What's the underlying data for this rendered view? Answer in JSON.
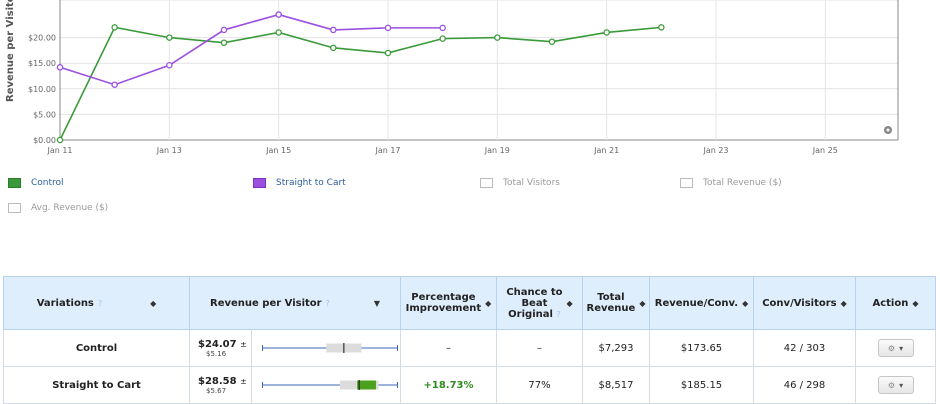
{
  "chart_data": {
    "type": "line",
    "ylabel": "Revenue per Visito",
    "yticks": [
      "$0.00",
      "$5.00",
      "$10.00",
      "$15.00",
      "$20.00"
    ],
    "ylim": [
      0,
      25
    ],
    "xticks": [
      "Jan 11",
      "Jan 13",
      "Jan 15",
      "Jan 17",
      "Jan 19",
      "Jan 21",
      "Jan 23",
      "Jan 25"
    ],
    "x_day_range": [
      11,
      26
    ],
    "series": [
      {
        "name": "Control",
        "color": "#3a9a3a",
        "x": [
          11,
          12,
          13,
          14,
          15,
          16,
          17,
          18,
          19,
          20,
          21,
          22
        ],
        "y": [
          0,
          22,
          20,
          19,
          21,
          18,
          17,
          19.8,
          20,
          19.2,
          21,
          22
        ]
      },
      {
        "name": "Straight to Cart",
        "color": "#9b4ee0",
        "x": [
          11,
          12,
          13,
          14,
          15,
          16,
          17,
          18
        ],
        "y": [
          14.2,
          10.8,
          14.6,
          21.5,
          24.5,
          21.5,
          21.9,
          21.9
        ]
      }
    ]
  },
  "legend": {
    "items": [
      {
        "label": "Control",
        "color": "#3a9a3a",
        "active": true
      },
      {
        "label": "Straight to Cart",
        "color": "#9b4ee0",
        "active": true
      },
      {
        "label": "Total Visitors",
        "color": "#ffffff",
        "active": false
      },
      {
        "label": "Total Revenue ($)",
        "color": "#ffffff",
        "active": false
      },
      {
        "label": "Avg. Revenue ($)",
        "color": "#ffffff",
        "active": false
      }
    ]
  },
  "table": {
    "headers": {
      "variations": "Variations",
      "rpv": "Revenue per Visitor",
      "improvement_1": "Percentage",
      "improvement_2": "Improvement",
      "chance_1": "Chance to",
      "chance_2": "Beat",
      "chance_3": "Original",
      "total_1": "Total",
      "total_2": "Revenue",
      "rev_conv": "Revenue/Conv.",
      "conv_visitors": "Conv/Visitors",
      "action": "Action"
    },
    "rows": [
      {
        "name": "Control",
        "rpv": "$24.07",
        "rpv_err": "$5.16",
        "improvement": "–",
        "chance": "–",
        "total": "$7,293",
        "rev_conv": "$173.65",
        "conv_visitors": "42 / 303",
        "range": {
          "low": 18.91,
          "high": 29.23,
          "mean": 24.07
        }
      },
      {
        "name": "Straight to Cart",
        "rpv": "$28.58",
        "rpv_err": "$5.67",
        "improvement": "+18.73%",
        "chance": "77%",
        "total": "$8,517",
        "rev_conv": "$185.15",
        "conv_visitors": "46 / 298",
        "range": {
          "low": 22.91,
          "high": 34.25,
          "mean": 28.58
        }
      }
    ],
    "range_axis": [
      0,
      40
    ]
  }
}
